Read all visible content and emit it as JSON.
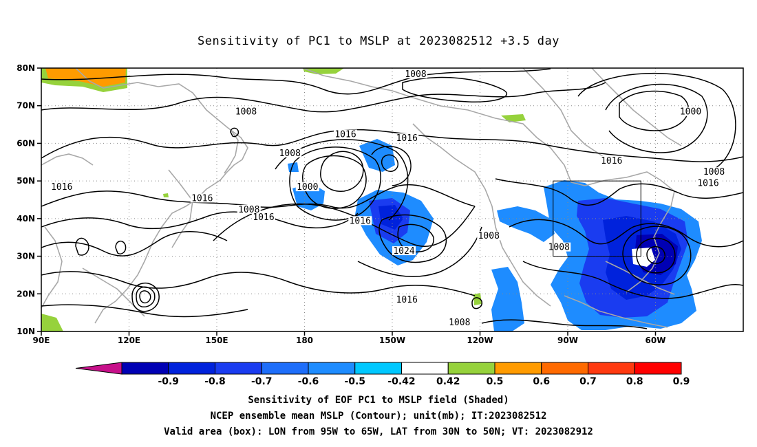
{
  "title": "Sensitivity of PC1 to MSLP at 2023082512 +3.5 day",
  "y_axis": {
    "ticks": [
      {
        "lat": 80,
        "label": "80N"
      },
      {
        "lat": 70,
        "label": "70N"
      },
      {
        "lat": 60,
        "label": "60N"
      },
      {
        "lat": 50,
        "label": "50N"
      },
      {
        "lat": 40,
        "label": "40N"
      },
      {
        "lat": 30,
        "label": "30N"
      },
      {
        "lat": 20,
        "label": "20N"
      },
      {
        "lat": 10,
        "label": "10N"
      }
    ]
  },
  "x_axis": {
    "ticks": [
      {
        "lon": 90,
        "label": "90E"
      },
      {
        "lon": 120,
        "label": "120E"
      },
      {
        "lon": 150,
        "label": "150E"
      },
      {
        "lon": 180,
        "label": "180"
      },
      {
        "lon": 210,
        "label": "150W"
      },
      {
        "lon": 240,
        "label": "120W"
      },
      {
        "lon": 270,
        "label": "90W"
      },
      {
        "lon": 300,
        "label": "60W"
      }
    ]
  },
  "domain": {
    "lon_min": 90,
    "lon_max": 330,
    "lat_min": 10,
    "lat_max": 80
  },
  "valid_box": {
    "lon_min": 265,
    "lon_max": 295,
    "lat_min": 30,
    "lat_max": 50
  },
  "colorbar": {
    "labels": [
      "-0.9",
      "-0.8",
      "-0.7",
      "-0.6",
      "-0.5",
      "-0.42",
      "0.42",
      "0.5",
      "0.6",
      "0.7",
      "0.8",
      "0.9"
    ],
    "colors": [
      "#c7108a",
      "#0000b4",
      "#0022dc",
      "#1a3cf0",
      "#1e6efa",
      "#1e8cff",
      "#00c8ff",
      "#ffffff",
      "#96d23c",
      "#ff9b00",
      "#ff6a00",
      "#ff3a10",
      "#ff0000",
      "#f8a0c8"
    ]
  },
  "contour_labels": [
    {
      "text": "1008",
      "lon": 218,
      "lat": 78
    },
    {
      "text": "1008",
      "lon": 160,
      "lat": 68
    },
    {
      "text": "1000",
      "lon": 312,
      "lat": 68
    },
    {
      "text": "1016",
      "lon": 194,
      "lat": 62
    },
    {
      "text": "1016",
      "lon": 215,
      "lat": 61
    },
    {
      "text": "1008",
      "lon": 175,
      "lat": 57
    },
    {
      "text": "1016",
      "lon": 97,
      "lat": 48
    },
    {
      "text": "1000",
      "lon": 181,
      "lat": 48
    },
    {
      "text": "1016",
      "lon": 145,
      "lat": 45
    },
    {
      "text": "1008",
      "lon": 161,
      "lat": 42
    },
    {
      "text": "1016",
      "lon": 166,
      "lat": 40
    },
    {
      "text": "1016",
      "lon": 199,
      "lat": 39
    },
    {
      "text": "1024",
      "lon": 214,
      "lat": 31
    },
    {
      "text": "1008",
      "lon": 243,
      "lat": 35
    },
    {
      "text": "1008",
      "lon": 267,
      "lat": 32
    },
    {
      "text": "1016",
      "lon": 285,
      "lat": 55
    },
    {
      "text": "1008",
      "lon": 320,
      "lat": 52
    },
    {
      "text": "1016",
      "lon": 318,
      "lat": 49
    },
    {
      "text": "1016",
      "lon": 215,
      "lat": 18
    },
    {
      "text": "1008",
      "lon": 233,
      "lat": 12
    }
  ],
  "captions": {
    "line1": "Sensitivity of EOF PC1 to MSLP field (Shaded)",
    "line2": "NCEP ensemble mean MSLP (Contour); unit(mb); IT:2023082512",
    "line3": "Valid area (box): LON from 95W to 65W, LAT from 30N to 50N; VT: 2023082912"
  }
}
